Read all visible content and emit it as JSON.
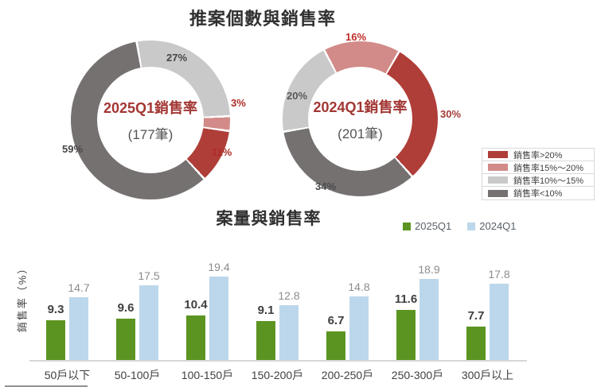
{
  "donut_section": {
    "title": "推案個數與銷售率",
    "legend": {
      "items": [
        {
          "label": "銷售率>20%",
          "color": "#AF3E39"
        },
        {
          "label": "銷售率15%～20%",
          "color": "#D28B88"
        },
        {
          "label": "銷售率10%～15%",
          "color": "#C9C9C9"
        },
        {
          "label": "銷售率<10%",
          "color": "#767171"
        }
      ]
    }
  },
  "bar_section": {
    "title": "案量與銷售率",
    "ylabel": "銷售率（%）",
    "legend": [
      {
        "label": "2025Q1",
        "color": "#5C9421"
      },
      {
        "label": "2024Q1",
        "color": "#BCD7EB"
      }
    ]
  },
  "chart_data": [
    {
      "type": "pie",
      "variant": "donut",
      "center_title": "2025Q1銷售率",
      "center_count": "(177筆)",
      "start_angle": -10,
      "slices": [
        {
          "category": "銷售率10%～15%",
          "value": 27,
          "color": "#C9C9C9",
          "label": "27%",
          "label_color": "#474747"
        },
        {
          "category": "銷售率15%～20%",
          "value": 3,
          "color": "#D28B88",
          "label": "3%",
          "label_color": "#B02B26"
        },
        {
          "category": "銷售率>20%",
          "value": 11,
          "color": "#AF3E39",
          "label": "11%",
          "label_color": "#B02B26"
        },
        {
          "category": "銷售率<10%",
          "value": 59,
          "color": "#767171",
          "label": "59%",
          "label_color": "#474747"
        }
      ]
    },
    {
      "type": "pie",
      "variant": "donut",
      "center_title": "2024Q1銷售率",
      "center_count": "(201筆)",
      "start_angle": 30,
      "slices": [
        {
          "category": "銷售率>20%",
          "value": 30,
          "color": "#AF3E39",
          "label": "30%",
          "label_color": "#A23B37"
        },
        {
          "category": "銷售率<10%",
          "value": 34,
          "color": "#767171",
          "label": "34%",
          "label_color": "#4A4A4A"
        },
        {
          "category": "銷售率10%～15%",
          "value": 20,
          "color": "#C9C9C9",
          "label": "20%",
          "label_color": "#595959"
        },
        {
          "category": "銷售率15%～20%",
          "value": 16,
          "color": "#D28B88",
          "label": "16%",
          "label_color": "#BE2D28"
        }
      ]
    },
    {
      "type": "bar",
      "title": "案量與銷售率",
      "ylabel": "銷售率（%）",
      "ylim": [
        0,
        20
      ],
      "grid": false,
      "legend_position": "top-right",
      "categories": [
        "50戶以下",
        "50-100戶",
        "100-150戶",
        "150-200戶",
        "200-250戶",
        "250-300戶",
        "300戶以上"
      ],
      "series": [
        {
          "name": "2025Q1",
          "color": "#5C9421",
          "label_color": "#3F3F3F",
          "values": [
            9.3,
            9.6,
            10.4,
            9.1,
            6.7,
            11.6,
            7.7
          ]
        },
        {
          "name": "2024Q1",
          "color": "#BCD7EB",
          "label_color": "#8C8C8C",
          "values": [
            14.7,
            17.5,
            19.4,
            12.8,
            14.8,
            18.9,
            17.8
          ]
        }
      ]
    }
  ]
}
